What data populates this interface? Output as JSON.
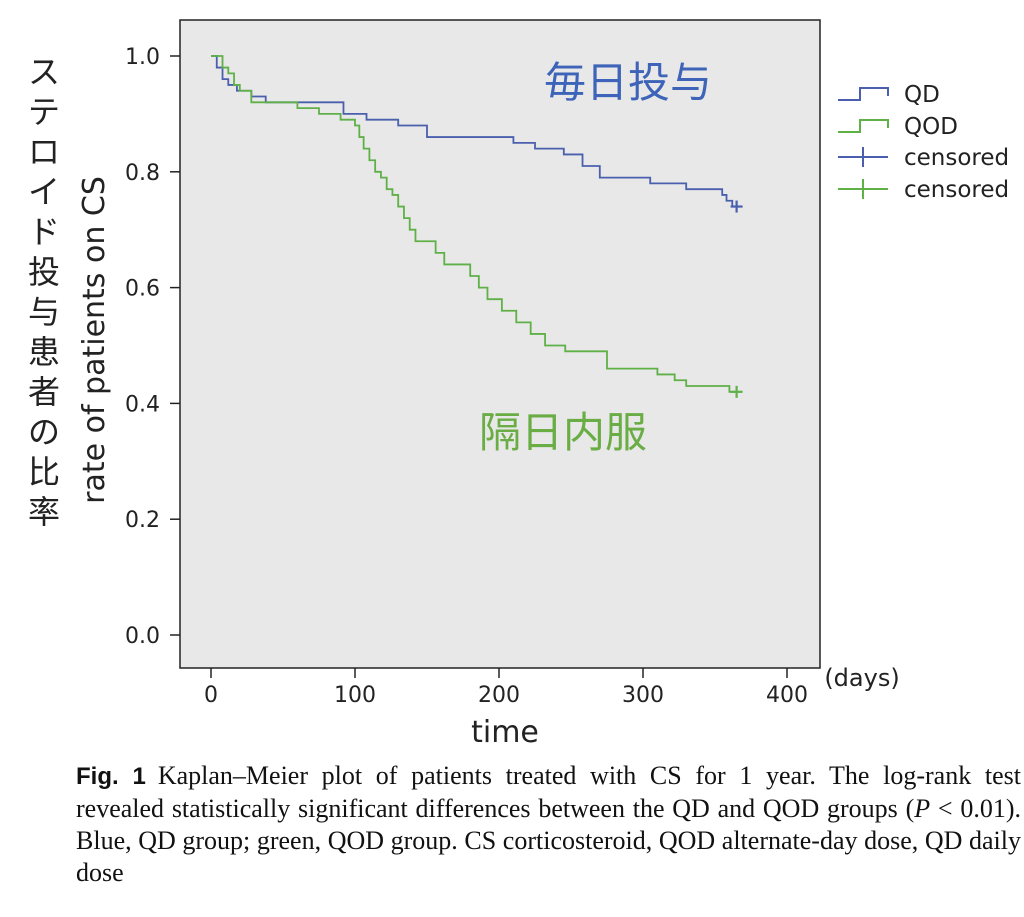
{
  "chart_data": {
    "type": "line",
    "subtype": "kaplan-meier-step",
    "xlabel": "time",
    "x_unit": "(days)",
    "ylabel": "rate of patients on CS",
    "ylabel_jp": "ステロイド投与患者の比率",
    "xlim": [
      0,
      400
    ],
    "ylim": [
      0,
      1.0
    ],
    "xticks": [
      "0",
      "100",
      "200",
      "300",
      "400"
    ],
    "yticks": [
      "0.0",
      "0.2",
      "0.4",
      "0.6",
      "0.8",
      "1.0"
    ],
    "grid": false,
    "plot_background": "#e8e8e8",
    "legend_position": "right",
    "legend": [
      {
        "label": "QD",
        "kind": "step-line",
        "color": "#4a5fae"
      },
      {
        "label": "QOD",
        "kind": "step-line",
        "color": "#5fb047"
      },
      {
        "label": "censored",
        "kind": "plus-marker",
        "color": "#4a5fae"
      },
      {
        "label": "censored",
        "kind": "plus-marker",
        "color": "#5fb047"
      }
    ],
    "annotations": [
      {
        "text": "毎日投与",
        "color": "#3d64b8",
        "series": "QD"
      },
      {
        "text": "隔日内服",
        "color": "#6aad45",
        "series": "QOD"
      }
    ],
    "series": [
      {
        "name": "QD",
        "color": "#4a5fae",
        "steps": [
          [
            0,
            1.0
          ],
          [
            4,
            0.98
          ],
          [
            8,
            0.96
          ],
          [
            12,
            0.95
          ],
          [
            18,
            0.94
          ],
          [
            28,
            0.93
          ],
          [
            38,
            0.92
          ],
          [
            92,
            0.9
          ],
          [
            108,
            0.89
          ],
          [
            130,
            0.88
          ],
          [
            150,
            0.86
          ],
          [
            210,
            0.85
          ],
          [
            225,
            0.84
          ],
          [
            245,
            0.83
          ],
          [
            258,
            0.81
          ],
          [
            270,
            0.79
          ],
          [
            305,
            0.78
          ],
          [
            330,
            0.77
          ],
          [
            355,
            0.76
          ],
          [
            358,
            0.75
          ],
          [
            362,
            0.74
          ]
        ],
        "end_x": 365,
        "censored": [
          [
            365,
            0.74
          ]
        ]
      },
      {
        "name": "QOD",
        "color": "#5fb047",
        "steps": [
          [
            0,
            1.0
          ],
          [
            8,
            0.98
          ],
          [
            12,
            0.97
          ],
          [
            16,
            0.95
          ],
          [
            20,
            0.94
          ],
          [
            28,
            0.92
          ],
          [
            60,
            0.91
          ],
          [
            75,
            0.9
          ],
          [
            90,
            0.89
          ],
          [
            100,
            0.88
          ],
          [
            103,
            0.86
          ],
          [
            106,
            0.84
          ],
          [
            110,
            0.82
          ],
          [
            114,
            0.8
          ],
          [
            118,
            0.79
          ],
          [
            122,
            0.77
          ],
          [
            126,
            0.76
          ],
          [
            130,
            0.74
          ],
          [
            134,
            0.72
          ],
          [
            138,
            0.7
          ],
          [
            142,
            0.68
          ],
          [
            156,
            0.66
          ],
          [
            162,
            0.64
          ],
          [
            180,
            0.62
          ],
          [
            186,
            0.6
          ],
          [
            192,
            0.58
          ],
          [
            202,
            0.56
          ],
          [
            212,
            0.54
          ],
          [
            222,
            0.52
          ],
          [
            232,
            0.5
          ],
          [
            246,
            0.49
          ],
          [
            275,
            0.46
          ],
          [
            310,
            0.45
          ],
          [
            322,
            0.44
          ],
          [
            330,
            0.43
          ],
          [
            360,
            0.42
          ]
        ],
        "end_x": 365,
        "censored": [
          [
            365,
            0.42
          ]
        ]
      }
    ]
  },
  "caption": {
    "label": "Fig. 1",
    "text_1": "Kaplan–Meier plot of patients treated with CS for 1 year. The log-rank test revealed statistically significant differences between the QD and QOD groups (",
    "p_var": "P",
    "text_2": " < 0.01). Blue, QD group; green, QOD group. CS corticosteroid, QOD alternate-day dose, QD daily dose"
  }
}
